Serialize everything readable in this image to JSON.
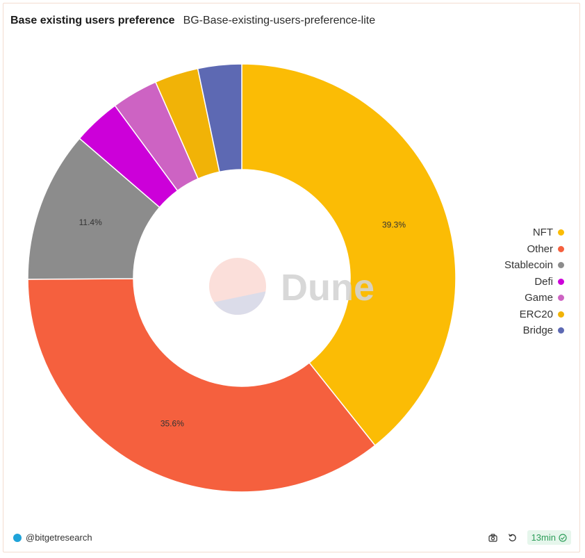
{
  "header": {
    "title": "Base existing users preference",
    "subtitle": "BG-Base-existing-users-preference-lite"
  },
  "watermark": {
    "text": "Dune",
    "logo_colors": [
      "#fbdcd6",
      "#d9dbea"
    ]
  },
  "chart_data": {
    "type": "pie",
    "donut": true,
    "categories": [
      "NFT",
      "Other",
      "Stablecoin",
      "Defi",
      "Game",
      "ERC20",
      "Bridge"
    ],
    "values": [
      39.3,
      35.6,
      11.4,
      3.6,
      3.5,
      3.3,
      3.3
    ],
    "labels_shown": [
      "39.3%",
      "35.6%",
      "11.4%",
      "",
      "",
      "",
      ""
    ],
    "colors": [
      "#fbbc05",
      "#f5603e",
      "#8c8c8c",
      "#cc00d9",
      "#cd63c3",
      "#f1b307",
      "#5d69b3"
    ],
    "legend_position": "right"
  },
  "footer": {
    "author": "@bitgetresearch",
    "refresh_badge": "13min"
  },
  "icons": {
    "camera": "camera-icon",
    "refresh": "refresh-icon",
    "check": "check-circle-icon"
  }
}
